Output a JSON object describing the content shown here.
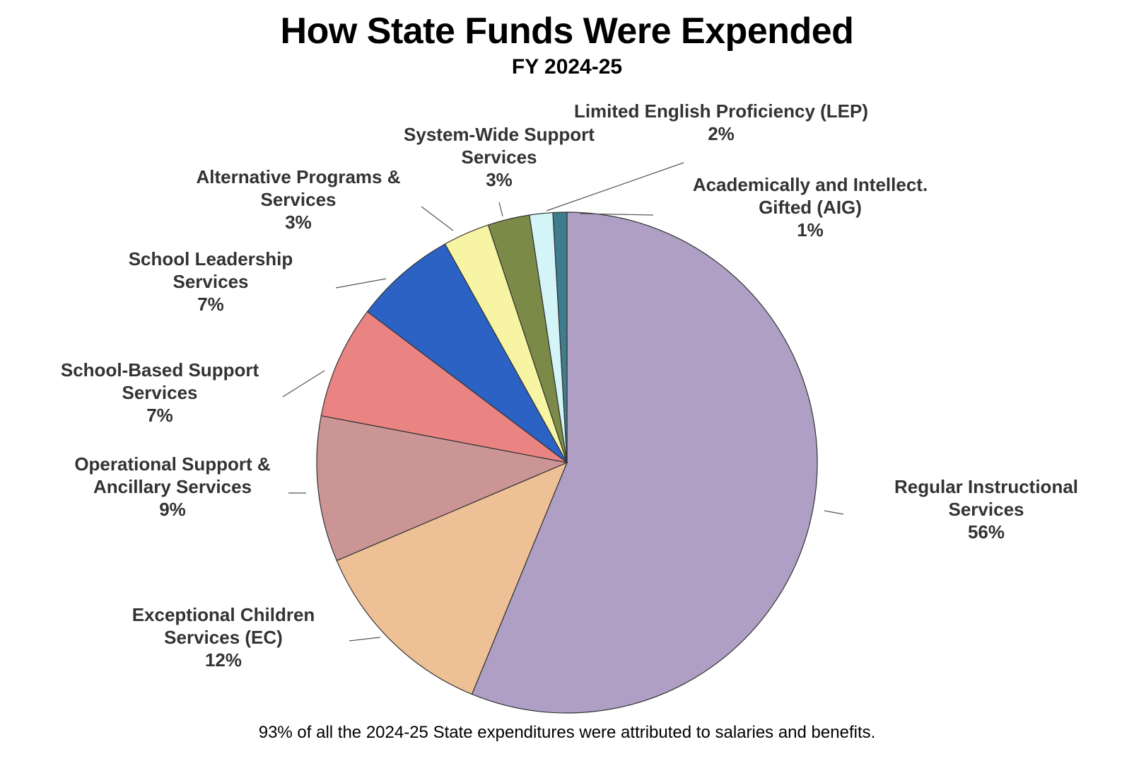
{
  "chart_data": {
    "type": "pie",
    "title": "How State Funds Were Expended",
    "subtitle": "FY 2024-25",
    "footnote": "93% of all the 2024-25 State expenditures were attributed to salaries and benefits.",
    "slices": [
      {
        "label": [
          "Regular Instructional",
          "Services"
        ],
        "pct_label": "56%",
        "value": 56.2,
        "color": "#AF9FC5"
      },
      {
        "label": [
          "Exceptional Children",
          "Services (EC)"
        ],
        "pct_label": "12%",
        "value": 12.4,
        "color": "#EDC096"
      },
      {
        "label": [
          "Operational Support &",
          "Ancillary Services"
        ],
        "pct_label": "9%",
        "value": 9.4,
        "color": "#CC9595"
      },
      {
        "label": [
          "School-Based Support",
          "Services"
        ],
        "pct_label": "7%",
        "value": 7.3,
        "color": "#EA8482"
      },
      {
        "label": [
          "School Leadership",
          "Services"
        ],
        "pct_label": "7%",
        "value": 6.6,
        "color": "#2B62C4"
      },
      {
        "label": [
          "Alternative Programs &",
          "Services"
        ],
        "pct_label": "3%",
        "value": 3.0,
        "color": "#F7F4A3"
      },
      {
        "label": [
          "System-Wide Support",
          "Services"
        ],
        "pct_label": "3%",
        "value": 2.7,
        "color": "#7B8B47"
      },
      {
        "label": [
          "Limited English Proficiency (LEP)"
        ],
        "pct_label": "2%",
        "value": 1.5,
        "color": "#D3F5F8"
      },
      {
        "label": [
          "Academically and Intellect.",
          "Gifted (AIG)"
        ],
        "pct_label": "1%",
        "value": 0.9,
        "color": "#3F7C8E"
      }
    ]
  }
}
